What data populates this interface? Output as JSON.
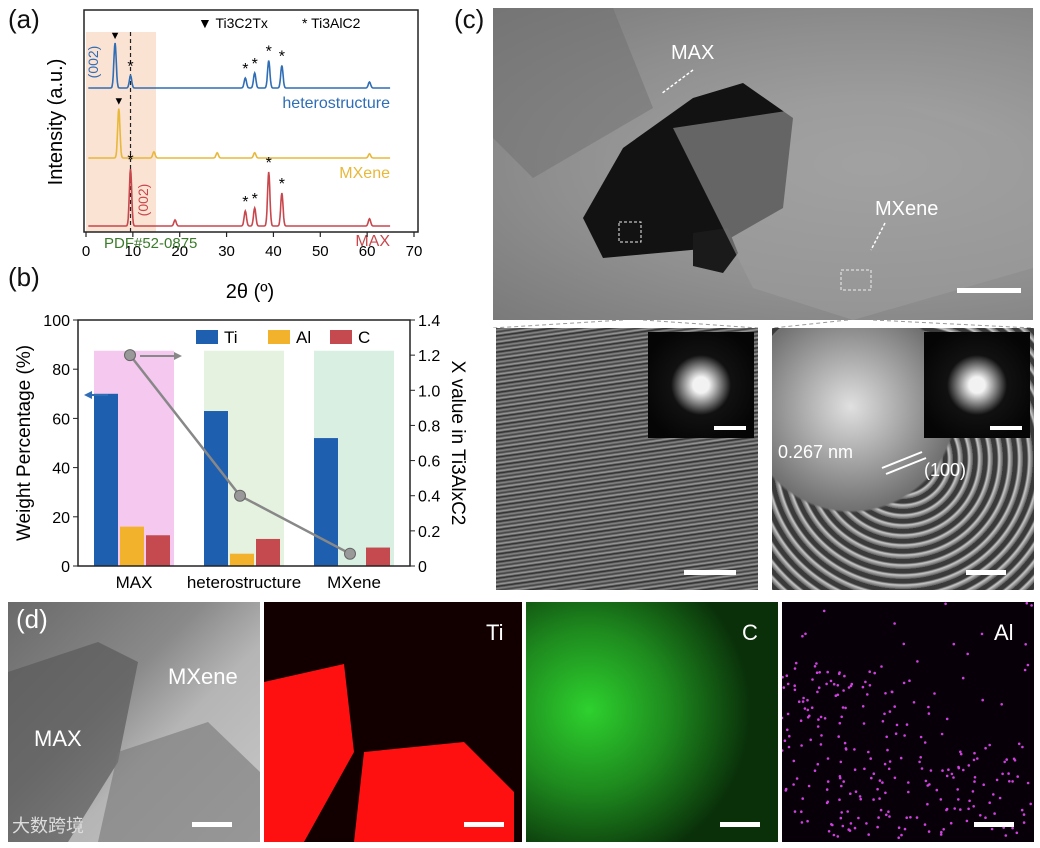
{
  "panels": {
    "a": "(a)",
    "b": "(b)",
    "c": "(c)",
    "d": "(d)"
  },
  "chart_data": [
    {
      "type": "line",
      "panel": "a",
      "legend": [
        {
          "symbol": "▼",
          "label": "Ti3C2Tx"
        },
        {
          "symbol": "*",
          "label": "Ti3AlC2"
        }
      ],
      "xlabel": "2θ (º)",
      "ylabel": "Intensity (a.u.)",
      "xlim": [
        0,
        70
      ],
      "xticks": [
        "0",
        "10",
        "20",
        "30",
        "40",
        "50",
        "60",
        "70"
      ],
      "series": [
        {
          "name": "heterostructure",
          "color": "#2f6db5",
          "peaks": [
            {
              "x": 6.2,
              "h": 0.9
            },
            {
              "x": 9.5,
              "h": 0.25
            },
            {
              "x": 34,
              "h": 0.2
            },
            {
              "x": 36,
              "h": 0.3
            },
            {
              "x": 39,
              "h": 0.55
            },
            {
              "x": 41.8,
              "h": 0.45
            },
            {
              "x": 60.5,
              "h": 0.12
            }
          ]
        },
        {
          "name": "MXene",
          "color": "#e8b83a",
          "peaks": [
            {
              "x": 7,
              "h": 0.95
            },
            {
              "x": 14.5,
              "h": 0.12
            },
            {
              "x": 28,
              "h": 0.1
            },
            {
              "x": 36,
              "h": 0.1
            },
            {
              "x": 60.5,
              "h": 0.08
            }
          ]
        },
        {
          "name": "MAX",
          "color": "#c8474d",
          "peaks": [
            {
              "x": 9.5,
              "h": 0.95
            },
            {
              "x": 19,
              "h": 0.1
            },
            {
              "x": 34,
              "h": 0.25
            },
            {
              "x": 36,
              "h": 0.3
            },
            {
              "x": 39,
              "h": 0.9
            },
            {
              "x": 41.8,
              "h": 0.55
            },
            {
              "x": 60.5,
              "h": 0.12
            }
          ]
        }
      ],
      "annotations": {
        "label_002_top": "(002)",
        "label_002_bottom": "(002)",
        "pdf": "PDF#52-0875"
      }
    },
    {
      "type": "bar",
      "panel": "b",
      "categories": [
        "MAX",
        "heterostructure",
        "MXene"
      ],
      "series": [
        {
          "name": "Ti",
          "color": "#1f5fb0",
          "values": [
            70,
            63,
            52
          ]
        },
        {
          "name": "Al",
          "color": "#f2b22c",
          "values": [
            16,
            5,
            0
          ]
        },
        {
          "name": "C",
          "color": "#c44a4f",
          "values": [
            12.5,
            11,
            7.5
          ]
        }
      ],
      "ylabel": "Weight Percentage (%)",
      "ylim": [
        0,
        100
      ],
      "yticks": [
        "0",
        "20",
        "40",
        "60",
        "80",
        "100"
      ],
      "y2label": "X value in Ti3AlxC2",
      "y2lim": [
        0,
        1.4
      ],
      "y2ticks": [
        "0",
        "0.2",
        "0.4",
        "0.6",
        "0.8",
        "1.0",
        "1.2",
        "1.4"
      ],
      "x_values": [
        1.2,
        0.4,
        0.07
      ],
      "backgrounds": [
        "#f5c8f0",
        "#e6f2e0",
        "#d8efe2"
      ]
    }
  ],
  "panel_c": {
    "label_max": "MAX",
    "label_mxene": "MXene",
    "d_spacing": "0.267 nm",
    "plane": "(100)"
  },
  "panel_d": {
    "label_max": "MAX",
    "label_mxene": "MXene",
    "maps": [
      "Ti",
      "C",
      "Al"
    ],
    "watermark": "大数跨境"
  }
}
